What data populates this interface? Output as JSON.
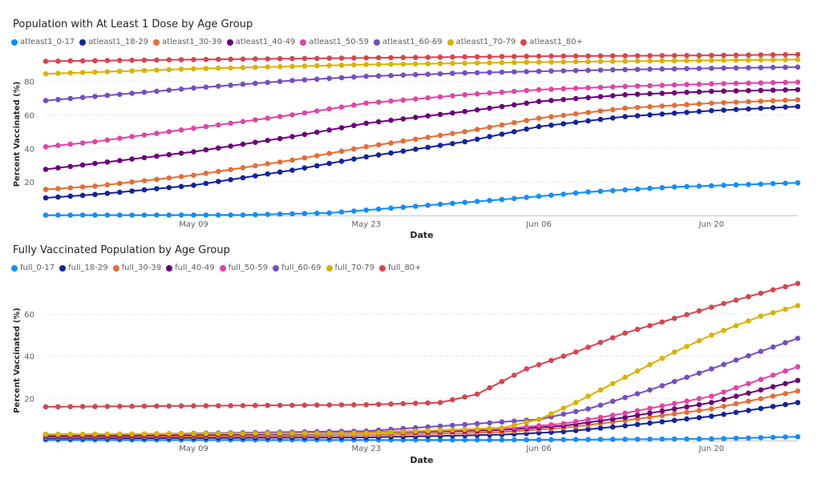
{
  "chart_data": [
    {
      "type": "line",
      "title": "Population with At Least 1 Dose by Age Group",
      "xlabel": "Date",
      "ylabel": "Percent Vaccinated (%)",
      "x_ticks": [
        "May 09",
        "May 23",
        "Jun 06",
        "Jun 20"
      ],
      "y_ticks": [
        20,
        40,
        60,
        80
      ],
      "ylim": [
        0,
        97
      ],
      "x_range": [
        "2021-04-27",
        "2021-06-27"
      ],
      "grid": "horizontal dotted",
      "legend_position": "top-left",
      "series": [
        {
          "name": "atleast1_0-17",
          "color": "#118DFF",
          "x": [
            "2021-04-27",
            "2021-05-13",
            "2021-05-20",
            "2021-05-27",
            "2021-06-03",
            "2021-06-10",
            "2021-06-17",
            "2021-06-27"
          ],
          "y": [
            0.2,
            0.3,
            1.5,
            5.5,
            9.5,
            14,
            17,
            19.5
          ]
        },
        {
          "name": "atleast1_18-29",
          "color": "#12239E",
          "x": [
            "2021-04-27",
            "2021-05-01",
            "2021-05-09",
            "2021-05-17",
            "2021-05-23",
            "2021-05-31",
            "2021-06-06",
            "2021-06-13",
            "2021-06-20",
            "2021-06-27"
          ],
          "y": [
            10.5,
            12.5,
            18,
            27,
            35,
            44,
            53,
            59,
            62.5,
            65
          ]
        },
        {
          "name": "atleast1_30-39",
          "color": "#E66C37",
          "x": [
            "2021-04-27",
            "2021-05-01",
            "2021-05-09",
            "2021-05-17",
            "2021-05-23",
            "2021-05-31",
            "2021-06-06",
            "2021-06-13",
            "2021-06-20",
            "2021-06-27"
          ],
          "y": [
            15.5,
            17.5,
            24,
            33,
            41,
            50,
            58,
            64,
            67,
            69
          ]
        },
        {
          "name": "atleast1_40-49",
          "color": "#6B007B",
          "x": [
            "2021-04-27",
            "2021-05-01",
            "2021-05-09",
            "2021-05-17",
            "2021-05-23",
            "2021-05-31",
            "2021-06-06",
            "2021-06-13",
            "2021-06-20",
            "2021-06-27"
          ],
          "y": [
            27.5,
            31,
            38,
            47,
            55,
            62,
            68,
            72,
            74,
            75
          ]
        },
        {
          "name": "atleast1_50-59",
          "color": "#E044A7",
          "x": [
            "2021-04-27",
            "2021-05-01",
            "2021-05-09",
            "2021-05-17",
            "2021-05-23",
            "2021-05-31",
            "2021-06-06",
            "2021-06-13",
            "2021-06-20",
            "2021-06-27"
          ],
          "y": [
            41,
            44,
            52,
            60,
            67,
            72,
            75,
            77,
            78.5,
            79.5
          ]
        },
        {
          "name": "atleast1_60-69",
          "color": "#744EC2",
          "x": [
            "2021-04-27",
            "2021-05-01",
            "2021-05-09",
            "2021-05-17",
            "2021-05-23",
            "2021-05-31",
            "2021-06-06",
            "2021-06-13",
            "2021-06-20",
            "2021-06-27"
          ],
          "y": [
            68.5,
            71,
            76,
            80.5,
            83,
            85,
            86,
            87,
            87.8,
            88.5
          ]
        },
        {
          "name": "atleast1_70-79",
          "color": "#D9B300",
          "x": [
            "2021-04-27",
            "2021-05-09",
            "2021-05-23",
            "2021-06-06",
            "2021-06-20",
            "2021-06-27"
          ],
          "y": [
            84.5,
            87.5,
            90,
            91.5,
            92.5,
            93
          ]
        },
        {
          "name": "atleast1_80+",
          "color": "#D64550",
          "x": [
            "2021-04-27",
            "2021-05-09",
            "2021-05-23",
            "2021-06-06",
            "2021-06-20",
            "2021-06-27"
          ],
          "y": [
            92,
            93,
            94,
            95,
            95.5,
            96
          ]
        }
      ]
    },
    {
      "type": "line",
      "title": "Fully Vaccinated Population by Age Group",
      "xlabel": "Date",
      "ylabel": "Percent Vaccinated (%)",
      "x_ticks": [
        "May 09",
        "May 23",
        "Jun 06",
        "Jun 20"
      ],
      "y_ticks": [
        20,
        40,
        60
      ],
      "ylim": [
        0,
        76
      ],
      "x_range": [
        "2021-04-27",
        "2021-06-27"
      ],
      "grid": "horizontal dotted",
      "legend_position": "top-left",
      "series": [
        {
          "name": "full_0-17",
          "color": "#118DFF",
          "x": [
            "2021-04-27",
            "2021-06-03",
            "2021-06-20",
            "2021-06-27"
          ],
          "y": [
            0.3,
            0.3,
            0.8,
            1.8
          ]
        },
        {
          "name": "full_18-29",
          "color": "#12239E",
          "x": [
            "2021-04-27",
            "2021-05-23",
            "2021-06-03",
            "2021-06-08",
            "2021-06-13",
            "2021-06-20",
            "2021-06-27"
          ],
          "y": [
            1.0,
            1.5,
            2.8,
            4.2,
            7,
            11.5,
            18
          ]
        },
        {
          "name": "full_30-39",
          "color": "#E66C37",
          "x": [
            "2021-04-27",
            "2021-05-23",
            "2021-06-03",
            "2021-06-08",
            "2021-06-13",
            "2021-06-20",
            "2021-06-27"
          ],
          "y": [
            1.5,
            2.5,
            4,
            6,
            9.5,
            15,
            23.5
          ]
        },
        {
          "name": "full_40-49",
          "color": "#6B007B",
          "x": [
            "2021-04-27",
            "2021-05-23",
            "2021-06-03",
            "2021-06-08",
            "2021-06-13",
            "2021-06-20",
            "2021-06-27"
          ],
          "y": [
            2,
            3.5,
            5,
            7,
            11,
            18,
            28.5
          ]
        },
        {
          "name": "full_50-59",
          "color": "#E044A7",
          "x": [
            "2021-04-27",
            "2021-05-23",
            "2021-06-03",
            "2021-06-08",
            "2021-06-13",
            "2021-06-20",
            "2021-06-27"
          ],
          "y": [
            2.5,
            4,
            5.5,
            8,
            13,
            21,
            35
          ]
        },
        {
          "name": "full_60-69",
          "color": "#744EC2",
          "x": [
            "2021-04-27",
            "2021-05-23",
            "2021-06-01",
            "2021-06-06",
            "2021-06-10",
            "2021-06-15",
            "2021-06-20",
            "2021-06-27"
          ],
          "y": [
            2.5,
            4.5,
            8,
            10,
            15,
            24,
            34,
            48.5
          ]
        },
        {
          "name": "full_70-79",
          "color": "#D9B300",
          "x": [
            "2021-04-27",
            "2021-05-23",
            "2021-06-03",
            "2021-06-06",
            "2021-06-09",
            "2021-06-13",
            "2021-06-17",
            "2021-06-20",
            "2021-06-24",
            "2021-06-27"
          ],
          "y": [
            3,
            3.5,
            6,
            10,
            18,
            30,
            42,
            50,
            59,
            64
          ]
        },
        {
          "name": "full_80+",
          "color": "#D64550",
          "x": [
            "2021-04-27",
            "2021-05-23",
            "2021-05-29",
            "2021-06-01",
            "2021-06-05",
            "2021-06-09",
            "2021-06-13",
            "2021-06-17",
            "2021-06-21",
            "2021-06-25",
            "2021-06-27"
          ],
          "y": [
            16,
            17,
            18,
            22,
            34,
            42,
            51,
            58,
            65,
            71.5,
            74.5
          ]
        }
      ]
    }
  ]
}
